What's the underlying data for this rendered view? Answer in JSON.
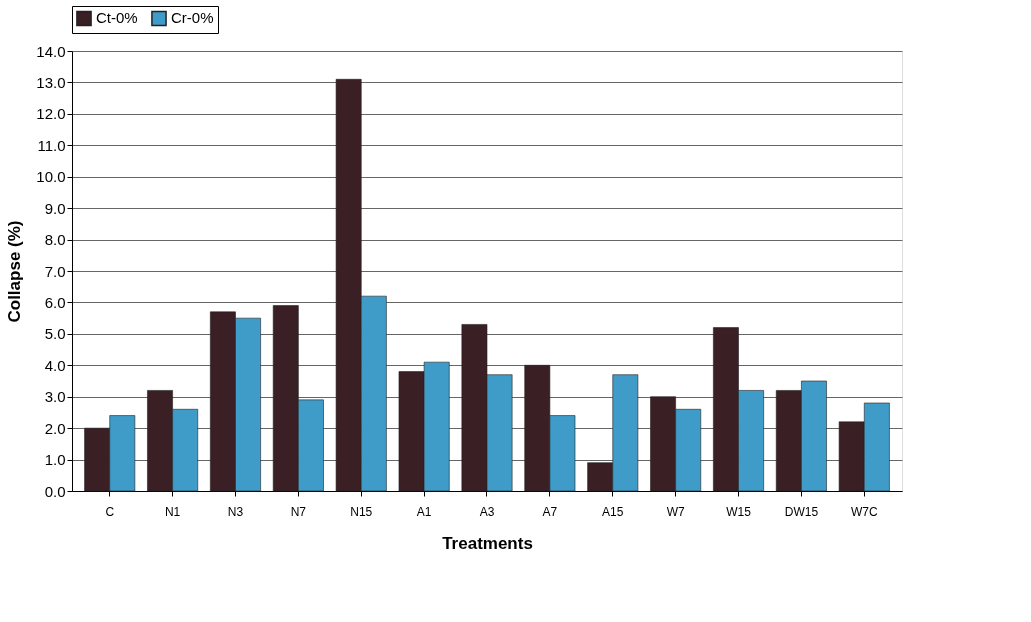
{
  "chart_data": {
    "type": "bar",
    "xlabel": "Treatments",
    "ylabel": "Collapse (%)",
    "categories": [
      "C",
      "N1",
      "N3",
      "N7",
      "N15",
      "A1",
      "A3",
      "A7",
      "A15",
      "W7",
      "W15",
      "DW15",
      "W7C"
    ],
    "series": [
      {
        "name": "Ct-0%",
        "color": "#3a1f24",
        "values": [
          2.0,
          3.2,
          5.7,
          5.9,
          13.1,
          3.8,
          5.3,
          4.0,
          0.9,
          3.0,
          5.2,
          3.2,
          2.2
        ]
      },
      {
        "name": "Cr-0%",
        "color": "#3f9bc8",
        "values": [
          2.4,
          2.6,
          5.5,
          2.9,
          6.2,
          4.1,
          3.7,
          2.4,
          3.7,
          2.6,
          3.2,
          3.5,
          2.8
        ]
      }
    ],
    "ylim": [
      0,
      14
    ],
    "yticks": [
      {
        "value": 0,
        "label": "0.0"
      },
      {
        "value": 1,
        "label": "1.0"
      },
      {
        "value": 2,
        "label": "2.0"
      },
      {
        "value": 3,
        "label": "3.0"
      },
      {
        "value": 4,
        "label": "4.0"
      },
      {
        "value": 5,
        "label": "5.0"
      },
      {
        "value": 6,
        "label": "6.0"
      },
      {
        "value": 7,
        "label": "7.0"
      },
      {
        "value": 8,
        "label": "8.0"
      },
      {
        "value": 9,
        "label": "9.0"
      },
      {
        "value": 10,
        "label": "10.0"
      },
      {
        "value": 11,
        "label": "11.0"
      },
      {
        "value": 12,
        "label": "12.0"
      },
      {
        "value": 13,
        "label": "13.0"
      },
      {
        "value": 14,
        "label": "14.0"
      }
    ],
    "grid": "y",
    "legend": "top"
  }
}
